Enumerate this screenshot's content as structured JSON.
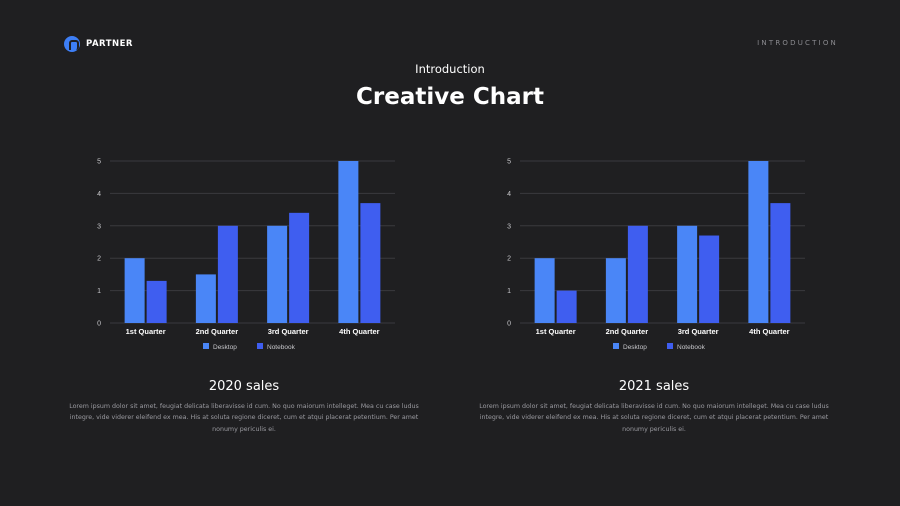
{
  "header": {
    "logo_text": "PARTNER",
    "nav_label": "INTRODUCTION"
  },
  "page": {
    "subtitle": "Introduction",
    "title": "Creative Chart"
  },
  "colors": {
    "background": "#1f1f21",
    "desktop": "#4a86f7",
    "notebook": "#3f5ef0",
    "gridline": "#3a3a3e",
    "axis_text": "#c8c8cc"
  },
  "chart_data": [
    {
      "type": "bar",
      "categories": [
        "1st Quarter",
        "2nd Quarter",
        "3rd Quarter",
        "4th Quarter"
      ],
      "series": [
        {
          "name": "Desktop",
          "values": [
            2,
            1.5,
            3,
            5
          ]
        },
        {
          "name": "Notebook",
          "values": [
            1.3,
            3,
            3.4,
            3.7
          ]
        }
      ],
      "yticks": [
        "0",
        "1",
        "2",
        "3",
        "4",
        "5"
      ],
      "ylim": [
        0,
        5
      ],
      "grid": true,
      "legend": "bottom"
    },
    {
      "type": "bar",
      "categories": [
        "1st Quarter",
        "2nd Quarter",
        "3rd Quarter",
        "4th Quarter"
      ],
      "series": [
        {
          "name": "Desktop",
          "values": [
            2,
            2,
            3,
            5
          ]
        },
        {
          "name": "Notebook",
          "values": [
            1,
            3,
            2.7,
            3.7
          ]
        }
      ],
      "yticks": [
        "0",
        "1",
        "2",
        "3",
        "4",
        "5"
      ],
      "ylim": [
        0,
        5
      ],
      "grid": true,
      "legend": "bottom"
    }
  ],
  "captions": [
    {
      "title": "2020 sales",
      "body": "Lorem ipsum dolor sit amet, feugiat delicata liberavisse id cum. No quo maiorum intelleget. Mea cu case ludus integre, vide viderer eleifend ex mea. His at soluta regione diceret, cum et atqui placerat petentium. Per amet nonumy periculis ei."
    },
    {
      "title": "2021 sales",
      "body": "Lorem ipsum dolor sit amet, feugiat delicata liberavisse id cum. No quo maiorum intelleget. Mea cu case ludus integre, vide viderer eleifend ex mea. His at soluta regione diceret, cum et atqui placerat petentium. Per amet nonumy periculis ei."
    }
  ]
}
